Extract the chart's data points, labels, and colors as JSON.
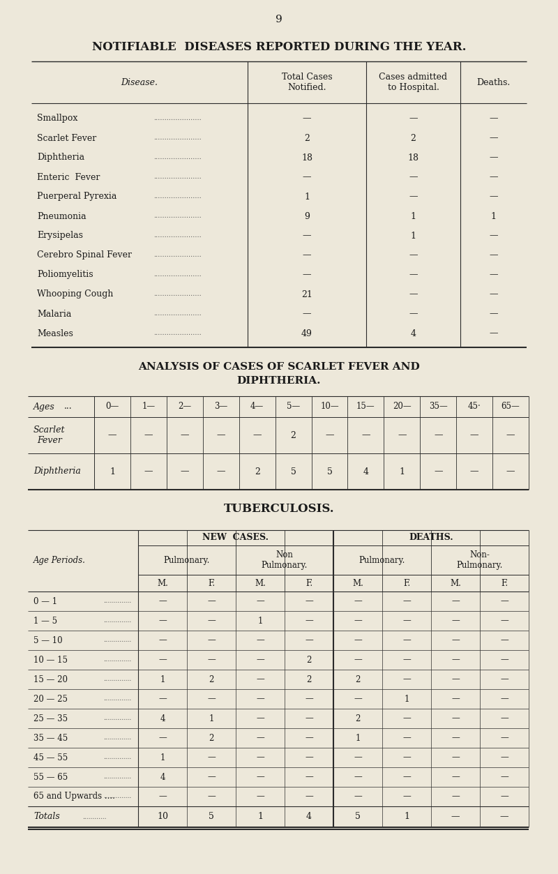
{
  "page_number": "9",
  "bg_color": "#ede8da",
  "text_color": "#1a1a1a",
  "table1_title": "NOTIFIABLE  DISEASES REPORTED DURING THE YEAR.",
  "table1_col_headers": [
    "Disease.",
    "Total Cases\nNotified.",
    "Cases admitted\nto Hospital.",
    "Deaths."
  ],
  "table1_rows": [
    [
      "Smallpox",
      "—",
      "—",
      "—"
    ],
    [
      "Scarlet Fever",
      "2",
      "2",
      "—"
    ],
    [
      "Diphtheria",
      "18",
      "18",
      "—"
    ],
    [
      "Enteric  Fever",
      "—",
      "—",
      "—"
    ],
    [
      "Puerperal Pyrexia",
      "1",
      "—",
      "—"
    ],
    [
      "Pneumonia",
      "9",
      "1",
      "1"
    ],
    [
      "Erysipelas",
      "—",
      "1",
      "—"
    ],
    [
      "Cerebro Spinal Fever",
      "—",
      "—",
      "—"
    ],
    [
      "Poliomyelitis",
      "—",
      "—",
      "—"
    ],
    [
      "Whooping Cough",
      "21",
      "—",
      "—"
    ],
    [
      "Malaria",
      "—",
      "—",
      "—"
    ],
    [
      "Measles",
      "49",
      "4",
      "—"
    ]
  ],
  "table2_title_line1": "ANALYSIS OF CASES OF SCARLET FEVER AND",
  "table2_title_line2": "DIPHTHERIA.",
  "table2_age_cols": [
    "0—",
    "1—",
    "2—",
    "3—",
    "4—",
    "5—",
    "10—",
    "15—",
    "20—",
    "35—",
    "45·",
    "65—"
  ],
  "table2_rows": [
    [
      "Scarlet\nFever",
      "—",
      "—",
      "—",
      "—",
      "—",
      "2",
      "—",
      "—",
      "—",
      "—",
      "—",
      "—"
    ],
    [
      "Diphtheria",
      "1",
      "—",
      "—",
      "—",
      "2",
      "5",
      "5",
      "4",
      "1",
      "—",
      "—",
      "—"
    ]
  ],
  "table3_title": "TUBERCULOSIS.",
  "table3_section1": "NEW  CASES.",
  "table3_section2": "DEATHS.",
  "table3_sub1": "Pulmonary.",
  "table3_sub2": "Non\nPulmonary.",
  "table3_sub3": "Pulmonary.",
  "table3_sub4": "Non-\nPulmonary.",
  "table3_mf": [
    "M.",
    "F.",
    "M.",
    "F.",
    "M.",
    "F.",
    "M.",
    "F."
  ],
  "table3_age_rows": [
    "0 — 1",
    "1 — 5",
    "5 — 10",
    "10 — 15",
    "15 — 20",
    "20 — 25",
    "25 — 35",
    "35 — 45",
    "45 — 55",
    "55 — 65",
    "65 and Upwards ...."
  ],
  "table3_data": [
    [
      "—",
      "—",
      "—",
      "—",
      "—",
      "—",
      "—",
      "—"
    ],
    [
      "—",
      "—",
      "1",
      "—",
      "—",
      "—",
      "—",
      "—"
    ],
    [
      "—",
      "—",
      "—",
      "—",
      "—",
      "—",
      "—",
      "—"
    ],
    [
      "—",
      "—",
      "—",
      "2",
      "—",
      "—",
      "—",
      "—"
    ],
    [
      "1",
      "2",
      "—",
      "2",
      "2",
      "—",
      "—",
      "—"
    ],
    [
      "—",
      "—",
      "—",
      "—",
      "—",
      "1",
      "—",
      "—"
    ],
    [
      "4",
      "1",
      "—",
      "—",
      "2",
      "—",
      "—",
      "—"
    ],
    [
      "—",
      "2",
      "—",
      "—",
      "1",
      "—",
      "—",
      "—"
    ],
    [
      "1",
      "—",
      "—",
      "—",
      "—",
      "—",
      "—",
      "—"
    ],
    [
      "4",
      "—",
      "—",
      "—",
      "—",
      "—",
      "—",
      "—"
    ],
    [
      "—",
      "—",
      "—",
      "—",
      "—",
      "—",
      "—",
      "—"
    ]
  ],
  "table3_totals": [
    "10",
    "5",
    "1",
    "4",
    "5",
    "1",
    "—",
    "—"
  ]
}
